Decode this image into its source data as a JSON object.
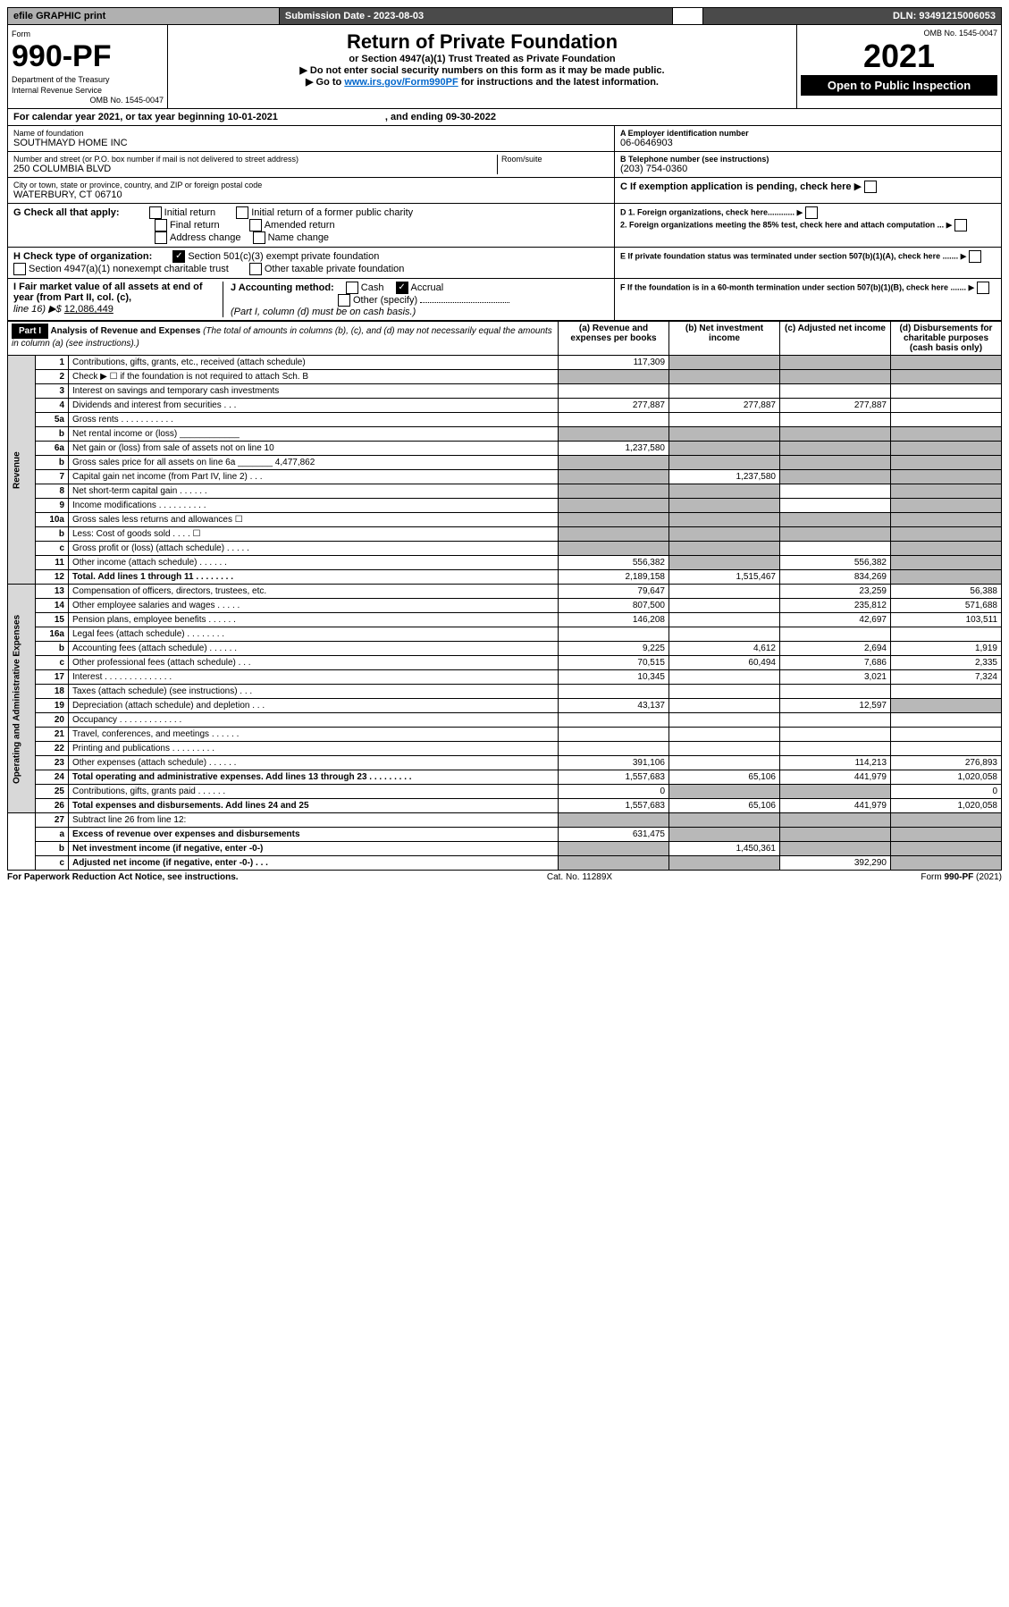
{
  "topbar": {
    "efile": "efile GRAPHIC print",
    "sub_lbl": "Submission Date - 2023-08-03",
    "dln": "DLN: 93491215006053"
  },
  "omb": "OMB No. 1545-0047",
  "form": {
    "word": "Form",
    "num": "990-PF",
    "dept": "Department of the Treasury",
    "irs": "Internal Revenue Service"
  },
  "title": "Return of Private Foundation",
  "subtitle": "or Section 4947(a)(1) Trust Treated as Private Foundation",
  "note1": "▶ Do not enter social security numbers on this form as it may be made public.",
  "note2_a": "▶ Go to ",
  "note2_link": "www.irs.gov/Form990PF",
  "note2_b": " for instructions and the latest information.",
  "year": "2021",
  "open": "Open to Public Inspection",
  "calyear": "For calendar year 2021, or tax year beginning 10-01-2021",
  "calyear_end": ", and ending 09-30-2022",
  "name_lbl": "Name of foundation",
  "name": "SOUTHMAYD HOME INC",
  "addr_lbl": "Number and street (or P.O. box number if mail is not delivered to street address)",
  "addr": "250 COLUMBIA BLVD",
  "room_lbl": "Room/suite",
  "city_lbl": "City or town, state or province, country, and ZIP or foreign postal code",
  "city": "WATERBURY, CT  06710",
  "a_lbl": "A Employer identification number",
  "a": "06-0646903",
  "b_lbl": "B Telephone number (see instructions)",
  "b": "(203) 754-0360",
  "c": "C If exemption application is pending, check here",
  "d1": "D 1. Foreign organizations, check here............",
  "d2": "2. Foreign organizations meeting the 85% test, check here and attach computation ...",
  "e": "E If private foundation status was terminated under section 507(b)(1)(A), check here .......",
  "f": "F If the foundation is in a 60-month termination under section 507(b)(1)(B), check here .......",
  "g_lbl": "G Check all that apply:",
  "g": {
    "initial": "Initial return",
    "initial_former": "Initial return of a former public charity",
    "final": "Final return",
    "amended": "Amended return",
    "addr_change": "Address change",
    "name_change": "Name change"
  },
  "h_lbl": "H Check type of organization:",
  "h1": "Section 501(c)(3) exempt private foundation",
  "h2": "Section 4947(a)(1) nonexempt charitable trust",
  "h3": "Other taxable private foundation",
  "i_lbl": "I Fair market value of all assets at end of year (from Part II, col. (c),",
  "i_line": "line 16) ▶$",
  "i_val": "12,086,449",
  "j_lbl": "J Accounting method:",
  "j_cash": "Cash",
  "j_acc": "Accrual",
  "j_other": "Other (specify)",
  "j_note": "(Part I, column (d) must be on cash basis.)",
  "part1": "Part I",
  "part1_title": "Analysis of Revenue and Expenses",
  "part1_sub": "(The total of amounts in columns (b), (c), and (d) may not necessarily equal the amounts in column (a) (see instructions).)",
  "cols": {
    "a": "(a) Revenue and expenses per books",
    "b": "(b) Net investment income",
    "c": "(c) Adjusted net income",
    "d": "(d) Disbursements for charitable purposes (cash basis only)"
  },
  "vl": {
    "rev": "Revenue",
    "exp": "Operating and Administrative Expenses"
  },
  "rows": [
    {
      "n": "1",
      "t": "Contributions, gifts, grants, etc., received (attach schedule)",
      "a": "117,309",
      "bs": 1,
      "cs": 1,
      "ds": 1
    },
    {
      "n": "2",
      "t": "Check ▶ ☐ if the foundation is not required to attach Sch. B",
      "dots": 1,
      "as": 1,
      "bs": 1,
      "cs": 1,
      "ds": 1
    },
    {
      "n": "3",
      "t": "Interest on savings and temporary cash investments"
    },
    {
      "n": "4",
      "t": "Dividends and interest from securities   .   .   .",
      "a": "277,887",
      "b": "277,887",
      "c": "277,887"
    },
    {
      "n": "5a",
      "t": "Gross rents   .   .   .   .   .   .   .   .   .   .   ."
    },
    {
      "n": "b",
      "t": "Net rental income or (loss)  ____________",
      "as": 1,
      "bs": 1,
      "cs": 1,
      "ds": 1
    },
    {
      "n": "6a",
      "t": "Net gain or (loss) from sale of assets not on line 10",
      "a": "1,237,580",
      "bs": 1,
      "cs": 1,
      "ds": 1
    },
    {
      "n": "b",
      "t": "Gross sales price for all assets on line 6a _______ 4,477,862",
      "as": 1,
      "bs": 1,
      "cs": 1,
      "ds": 1
    },
    {
      "n": "7",
      "t": "Capital gain net income (from Part IV, line 2)   .   .   .",
      "as": 1,
      "b": "1,237,580",
      "cs": 1,
      "ds": 1
    },
    {
      "n": "8",
      "t": "Net short-term capital gain   .   .   .   .   .   .",
      "as": 1,
      "bs": 1,
      "ds": 1
    },
    {
      "n": "9",
      "t": "Income modifications  .   .   .   .   .   .   .   .   .   .",
      "as": 1,
      "bs": 1,
      "ds": 1
    },
    {
      "n": "10a",
      "t": "Gross sales less returns and allowances  ☐",
      "as": 1,
      "bs": 1,
      "cs": 1,
      "ds": 1
    },
    {
      "n": "b",
      "t": "Less: Cost of goods sold   .   .   .   .  ☐",
      "as": 1,
      "bs": 1,
      "cs": 1,
      "ds": 1
    },
    {
      "n": "c",
      "t": "Gross profit or (loss) (attach schedule)   .   .   .   .   .",
      "as": 1,
      "bs": 1,
      "ds": 1
    },
    {
      "n": "11",
      "t": "Other income (attach schedule)   .   .   .   .   .   .",
      "a": "556,382",
      "bs": 1,
      "c": "556,382",
      "ds": 1
    },
    {
      "n": "12",
      "t": "Total. Add lines 1 through 11   .   .   .   .   .   .   .   .",
      "bold": 1,
      "a": "2,189,158",
      "b": "1,515,467",
      "c": "834,269",
      "ds": 1
    }
  ],
  "exprows": [
    {
      "n": "13",
      "t": "Compensation of officers, directors, trustees, etc.",
      "a": "79,647",
      "c": "23,259",
      "d": "56,388"
    },
    {
      "n": "14",
      "t": "Other employee salaries and wages   .   .   .   .   .",
      "a": "807,500",
      "c": "235,812",
      "d": "571,688"
    },
    {
      "n": "15",
      "t": "Pension plans, employee benefits  .   .   .   .   .   .",
      "a": "146,208",
      "c": "42,697",
      "d": "103,511"
    },
    {
      "n": "16a",
      "t": "Legal fees (attach schedule)  .   .   .   .   .   .   .   ."
    },
    {
      "n": "b",
      "t": "Accounting fees (attach schedule)  .   .   .   .   .   .",
      "a": "9,225",
      "b": "4,612",
      "c": "2,694",
      "d": "1,919"
    },
    {
      "n": "c",
      "t": "Other professional fees (attach schedule)   .   .   .",
      "a": "70,515",
      "b": "60,494",
      "c": "7,686",
      "d": "2,335"
    },
    {
      "n": "17",
      "t": "Interest  .   .   .   .   .   .   .   .   .   .   .   .   .   .",
      "a": "10,345",
      "c": "3,021",
      "d": "7,324"
    },
    {
      "n": "18",
      "t": "Taxes (attach schedule) (see instructions)   .   .   ."
    },
    {
      "n": "19",
      "t": "Depreciation (attach schedule) and depletion   .   .   .",
      "a": "43,137",
      "c": "12,597",
      "ds": 1
    },
    {
      "n": "20",
      "t": "Occupancy  .   .   .   .   .   .   .   .   .   .   .   .   ."
    },
    {
      "n": "21",
      "t": "Travel, conferences, and meetings  .   .   .   .   .   ."
    },
    {
      "n": "22",
      "t": "Printing and publications  .   .   .   .   .   .   .   .   ."
    },
    {
      "n": "23",
      "t": "Other expenses (attach schedule)  .   .   .   .   .   .",
      "a": "391,106",
      "c": "114,213",
      "d": "276,893"
    },
    {
      "n": "24",
      "t": "Total operating and administrative expenses. Add lines 13 through 23   .   .   .   .   .   .   .   .   .",
      "bold": 1,
      "a": "1,557,683",
      "b": "65,106",
      "c": "441,979",
      "d": "1,020,058"
    },
    {
      "n": "25",
      "t": "Contributions, gifts, grants paid   .   .   .   .   .   .",
      "a": "0",
      "bs": 1,
      "cs": 1,
      "d": "0"
    },
    {
      "n": "26",
      "t": "Total expenses and disbursements. Add lines 24 and 25",
      "bold": 1,
      "a": "1,557,683",
      "b": "65,106",
      "c": "441,979",
      "d": "1,020,058"
    },
    {
      "n": "27",
      "t": "Subtract line 26 from line 12:",
      "as": 1,
      "bs": 1,
      "cs": 1,
      "ds": 1,
      "nov": 1
    },
    {
      "n": "a",
      "t": "Excess of revenue over expenses and disbursements",
      "bold": 1,
      "a": "631,475",
      "bs": 1,
      "cs": 1,
      "ds": 1,
      "nov": 1
    },
    {
      "n": "b",
      "t": "Net investment income (if negative, enter -0-)",
      "bold": 1,
      "as": 1,
      "b": "1,450,361",
      "cs": 1,
      "ds": 1,
      "nov": 1
    },
    {
      "n": "c",
      "t": "Adjusted net income (if negative, enter -0-)   .   .   .",
      "bold": 1,
      "as": 1,
      "bs": 1,
      "c": "392,290",
      "ds": 1,
      "nov": 1
    }
  ],
  "foot": {
    "l": "For Paperwork Reduction Act Notice, see instructions.",
    "c": "Cat. No. 11289X",
    "r": "Form 990-PF (2021)"
  }
}
